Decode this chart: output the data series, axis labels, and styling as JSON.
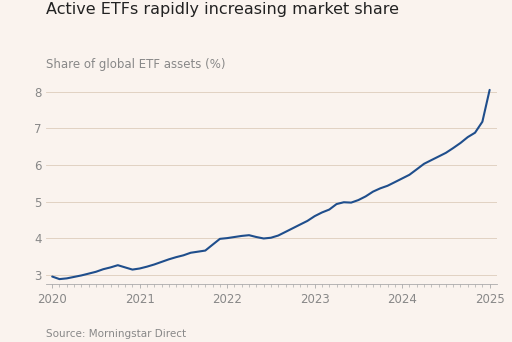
{
  "title": "Active ETFs rapidly increasing market share",
  "ylabel": "Share of global ETF assets (%)",
  "source": "Source: Morningstar Direct",
  "background_color": "#faf3ee",
  "line_color": "#1f4e8c",
  "line_width": 1.5,
  "ylim": [
    2.75,
    8.45
  ],
  "yticks": [
    3,
    4,
    5,
    6,
    7,
    8
  ],
  "x_data": [
    2020.0,
    2020.083,
    2020.167,
    2020.25,
    2020.333,
    2020.417,
    2020.5,
    2020.583,
    2020.667,
    2020.75,
    2020.833,
    2020.917,
    2021.0,
    2021.083,
    2021.167,
    2021.25,
    2021.333,
    2021.417,
    2021.5,
    2021.583,
    2021.667,
    2021.75,
    2021.833,
    2021.917,
    2022.0,
    2022.083,
    2022.167,
    2022.25,
    2022.333,
    2022.417,
    2022.5,
    2022.583,
    2022.667,
    2022.75,
    2022.833,
    2022.917,
    2023.0,
    2023.083,
    2023.167,
    2023.25,
    2023.333,
    2023.417,
    2023.5,
    2023.583,
    2023.667,
    2023.75,
    2023.833,
    2023.917,
    2024.0,
    2024.083,
    2024.167,
    2024.25,
    2024.333,
    2024.417,
    2024.5,
    2024.583,
    2024.667,
    2024.75,
    2024.833,
    2024.917,
    2025.0
  ],
  "y_data": [
    2.95,
    2.88,
    2.9,
    2.94,
    2.98,
    3.03,
    3.08,
    3.15,
    3.2,
    3.26,
    3.2,
    3.14,
    3.17,
    3.22,
    3.28,
    3.35,
    3.42,
    3.48,
    3.53,
    3.6,
    3.63,
    3.66,
    3.82,
    3.98,
    4.0,
    4.03,
    4.06,
    4.08,
    4.03,
    3.99,
    4.01,
    4.07,
    4.17,
    4.27,
    4.37,
    4.47,
    4.6,
    4.7,
    4.78,
    4.93,
    4.98,
    4.97,
    5.04,
    5.14,
    5.27,
    5.36,
    5.43,
    5.53,
    5.63,
    5.73,
    5.88,
    6.03,
    6.13,
    6.23,
    6.33,
    6.46,
    6.6,
    6.76,
    6.88,
    7.18,
    8.05
  ],
  "xticks": [
    2020,
    2021,
    2022,
    2023,
    2024,
    2025
  ],
  "xlim": [
    2019.93,
    2025.08
  ],
  "title_fontsize": 11.5,
  "label_fontsize": 8.5,
  "tick_fontsize": 8.5,
  "source_fontsize": 7.5,
  "tick_color": "#aaaaaa",
  "label_color": "#888888",
  "grid_color": "#ddccbb",
  "grid_linewidth": 0.6
}
